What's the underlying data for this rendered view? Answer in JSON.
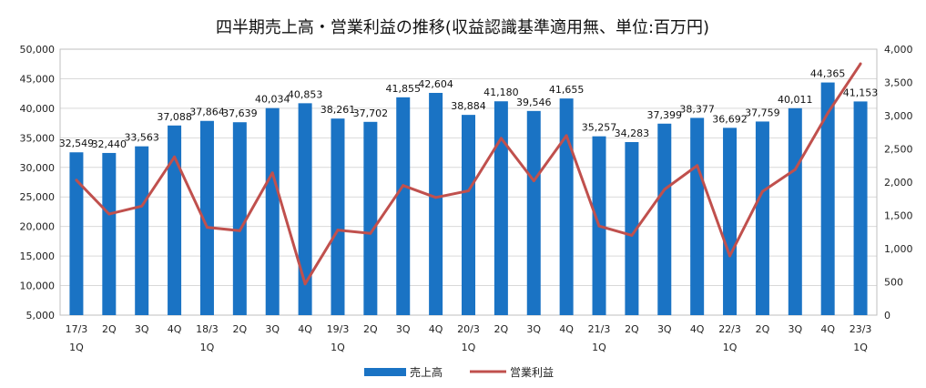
{
  "chart_data": {
    "type": "bar+line",
    "title": "四半期売上高・営業利益の推移(収益認識基準適用無、単位:百万円)",
    "categories": [
      [
        "17/3",
        "1Q"
      ],
      [
        "2Q",
        ""
      ],
      [
        "3Q",
        ""
      ],
      [
        "4Q",
        ""
      ],
      [
        "18/3",
        "1Q"
      ],
      [
        "2Q",
        ""
      ],
      [
        "3Q",
        ""
      ],
      [
        "4Q",
        ""
      ],
      [
        "19/3",
        "1Q"
      ],
      [
        "2Q",
        ""
      ],
      [
        "3Q",
        ""
      ],
      [
        "4Q",
        ""
      ],
      [
        "20/3",
        "1Q"
      ],
      [
        "2Q",
        ""
      ],
      [
        "3Q",
        ""
      ],
      [
        "4Q",
        ""
      ],
      [
        "21/3",
        "1Q"
      ],
      [
        "2Q",
        ""
      ],
      [
        "3Q",
        ""
      ],
      [
        "4Q",
        ""
      ],
      [
        "22/3",
        "1Q"
      ],
      [
        "2Q",
        ""
      ],
      [
        "3Q",
        ""
      ],
      [
        "4Q",
        ""
      ],
      [
        "23/3",
        "1Q"
      ]
    ],
    "series": [
      {
        "name": "売上高",
        "kind": "bar",
        "axis": "left",
        "color": "#1a73c4",
        "values": [
          32549,
          32440,
          33563,
          37088,
          37864,
          37639,
          40034,
          40853,
          38261,
          37702,
          41855,
          42604,
          38884,
          41180,
          39546,
          41655,
          35257,
          34283,
          37399,
          38377,
          36692,
          37759,
          40011,
          44365,
          41153
        ],
        "labels": [
          "32,549",
          "32,440",
          "33,563",
          "37,088",
          "37,864",
          "37,639",
          "40,034",
          "40,853",
          "38,261",
          "37,702",
          "41,855",
          "42,604",
          "38,884",
          "41,180",
          "39,546",
          "41,655",
          "35,257",
          "34,283",
          "37,399",
          "38,377",
          "36,692",
          "37,759",
          "40,011",
          "44,365",
          "41,153"
        ]
      },
      {
        "name": "営業利益",
        "kind": "line",
        "axis": "right",
        "color": "#c0504d",
        "values": [
          2030,
          1520,
          1640,
          2380,
          1320,
          1270,
          2140,
          470,
          1280,
          1230,
          1950,
          1770,
          1870,
          2660,
          2020,
          2700,
          1340,
          1200,
          1890,
          2250,
          890,
          1860,
          2190,
          3040,
          3780
        ]
      }
    ],
    "left_axis": {
      "min": 5000,
      "max": 50000,
      "step": 5000,
      "tick_labels": [
        "5,000",
        "10,000",
        "15,000",
        "20,000",
        "25,000",
        "30,000",
        "35,000",
        "40,000",
        "45,000",
        "50,000"
      ]
    },
    "right_axis": {
      "min": 0,
      "max": 4000,
      "step": 500,
      "tick_labels": [
        "0",
        "500",
        "1,000",
        "1,500",
        "2,000",
        "2,500",
        "3,000",
        "3,500",
        "4,000"
      ]
    },
    "grid": true,
    "legend_position": "bottom-center"
  }
}
